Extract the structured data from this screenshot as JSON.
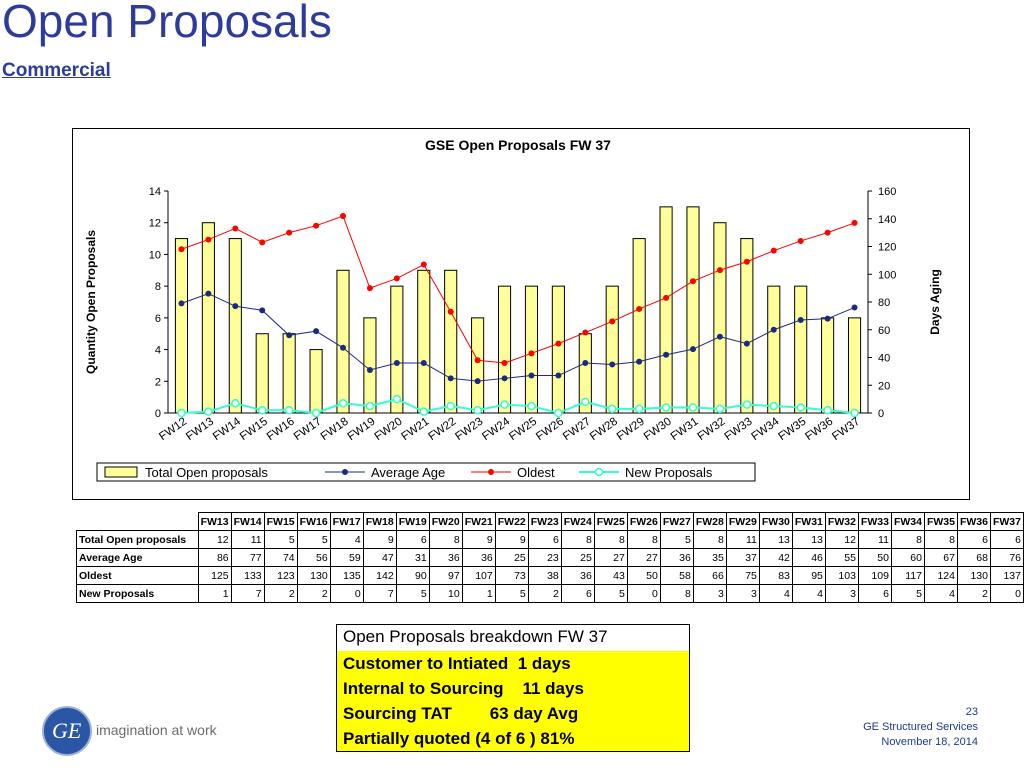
{
  "slide": {
    "title": "Open Proposals",
    "subtitle": "Commercial",
    "logo_text": "GE",
    "tagline": "imagination at work",
    "page_number": "23",
    "company": "GE Structured Services",
    "date": "November 18, 2014"
  },
  "chart_data": {
    "type": "bar",
    "title": "GSE Open Proposals FW 37",
    "ylabel": "Quantity Open Proposals",
    "y2label": "Days Aging",
    "ylim": [
      0,
      14
    ],
    "y2lim": [
      0,
      160
    ],
    "yticks": [
      0,
      2,
      4,
      6,
      8,
      10,
      12,
      14
    ],
    "y2ticks": [
      0,
      20,
      40,
      60,
      80,
      100,
      120,
      140,
      160
    ],
    "categories": [
      "FW12",
      "FW13",
      "FW14",
      "FW15",
      "FW16",
      "FW17",
      "FW18",
      "FW19",
      "FW20",
      "FW21",
      "FW22",
      "FW23",
      "FW24",
      "FW25",
      "FW26",
      "FW27",
      "FW28",
      "FW29",
      "FW30",
      "FW31",
      "FW32",
      "FW33",
      "FW34",
      "FW35",
      "FW36",
      "FW37"
    ],
    "legend_position": "bottom",
    "colors": {
      "bar_fill": "#ffff99",
      "bar_stroke": "#000000",
      "average_age": "#1a2a80",
      "oldest": "#ff0000",
      "new_proposals": "#33ffcc"
    },
    "series": [
      {
        "name": "Total Open proposals",
        "axis": "left",
        "kind": "bar",
        "values": [
          11,
          12,
          11,
          5,
          5,
          4,
          9,
          6,
          8,
          9,
          9,
          6,
          8,
          8,
          8,
          5,
          8,
          11,
          13,
          13,
          12,
          11,
          8,
          8,
          6,
          6
        ]
      },
      {
        "name": "Average Age",
        "axis": "right",
        "kind": "line",
        "values": [
          79,
          86,
          77,
          74,
          56,
          59,
          47,
          31,
          36,
          36,
          25,
          23,
          25,
          27,
          27,
          36,
          35,
          37,
          42,
          46,
          55,
          50,
          60,
          67,
          68,
          76
        ]
      },
      {
        "name": "Oldest",
        "axis": "right",
        "kind": "line",
        "values": [
          118,
          125,
          133,
          123,
          130,
          135,
          142,
          90,
          97,
          107,
          73,
          38,
          36,
          43,
          50,
          58,
          66,
          75,
          83,
          95,
          103,
          109,
          117,
          124,
          130,
          137
        ]
      },
      {
        "name": "New Proposals",
        "axis": "right",
        "kind": "line",
        "values": [
          0,
          1,
          7,
          2,
          2,
          0,
          7,
          5,
          10,
          1,
          5,
          2,
          6,
          5,
          0,
          8,
          3,
          3,
          4,
          4,
          3,
          6,
          5,
          4,
          2,
          0
        ]
      }
    ]
  },
  "table": {
    "columns": [
      "FW13",
      "FW14",
      "FW15",
      "FW16",
      "FW17",
      "FW18",
      "FW19",
      "FW20",
      "FW21",
      "FW22",
      "FW23",
      "FW24",
      "FW25",
      "FW26",
      "FW27",
      "FW28",
      "FW29",
      "FW30",
      "FW31",
      "FW32",
      "FW33",
      "FW34",
      "FW35",
      "FW36",
      "FW37"
    ],
    "rows": [
      {
        "label": "Total Open proposals",
        "values": [
          "12",
          "11",
          "5",
          "5",
          "4",
          "9",
          "6",
          "8",
          "9",
          "9",
          "6",
          "8",
          "8",
          "8",
          "5",
          "8",
          "11",
          "13",
          "13",
          "12",
          "11",
          "8",
          "8",
          "6",
          "6"
        ]
      },
      {
        "label": "Average Age",
        "values": [
          "86",
          "77",
          "74",
          "56",
          "59",
          "47",
          "31",
          "36",
          "36",
          "25",
          "23",
          "25",
          "27",
          "27",
          "36",
          "35",
          "37",
          "42",
          "46",
          "55",
          "50",
          "60",
          "67",
          "68",
          "76"
        ]
      },
      {
        "label": "Oldest",
        "values": [
          "125",
          "133",
          "123",
          "130",
          "135",
          "142",
          "90",
          "97",
          "107",
          "73",
          "38",
          "36",
          "43",
          "50",
          "58",
          "66",
          "75",
          "83",
          "95",
          "103",
          "109",
          "117",
          "124",
          "130",
          "137"
        ]
      },
      {
        "label": "New Proposals",
        "values": [
          "1",
          "7",
          "2",
          "2",
          "0",
          "7",
          "5",
          "10",
          "1",
          "5",
          "2",
          "6",
          "5",
          "0",
          "8",
          "3",
          "3",
          "4",
          "4",
          "3",
          "6",
          "5",
          "4",
          "2",
          "0"
        ]
      }
    ]
  },
  "breakdown": {
    "header": "Open Proposals breakdown FW 37",
    "lines": [
      "Customer to Intiated  1 days",
      "Internal to Sourcing    11 days",
      "Sourcing TAT        63 day Avg",
      "Partially quoted (4 of 6 ) 81%"
    ]
  }
}
